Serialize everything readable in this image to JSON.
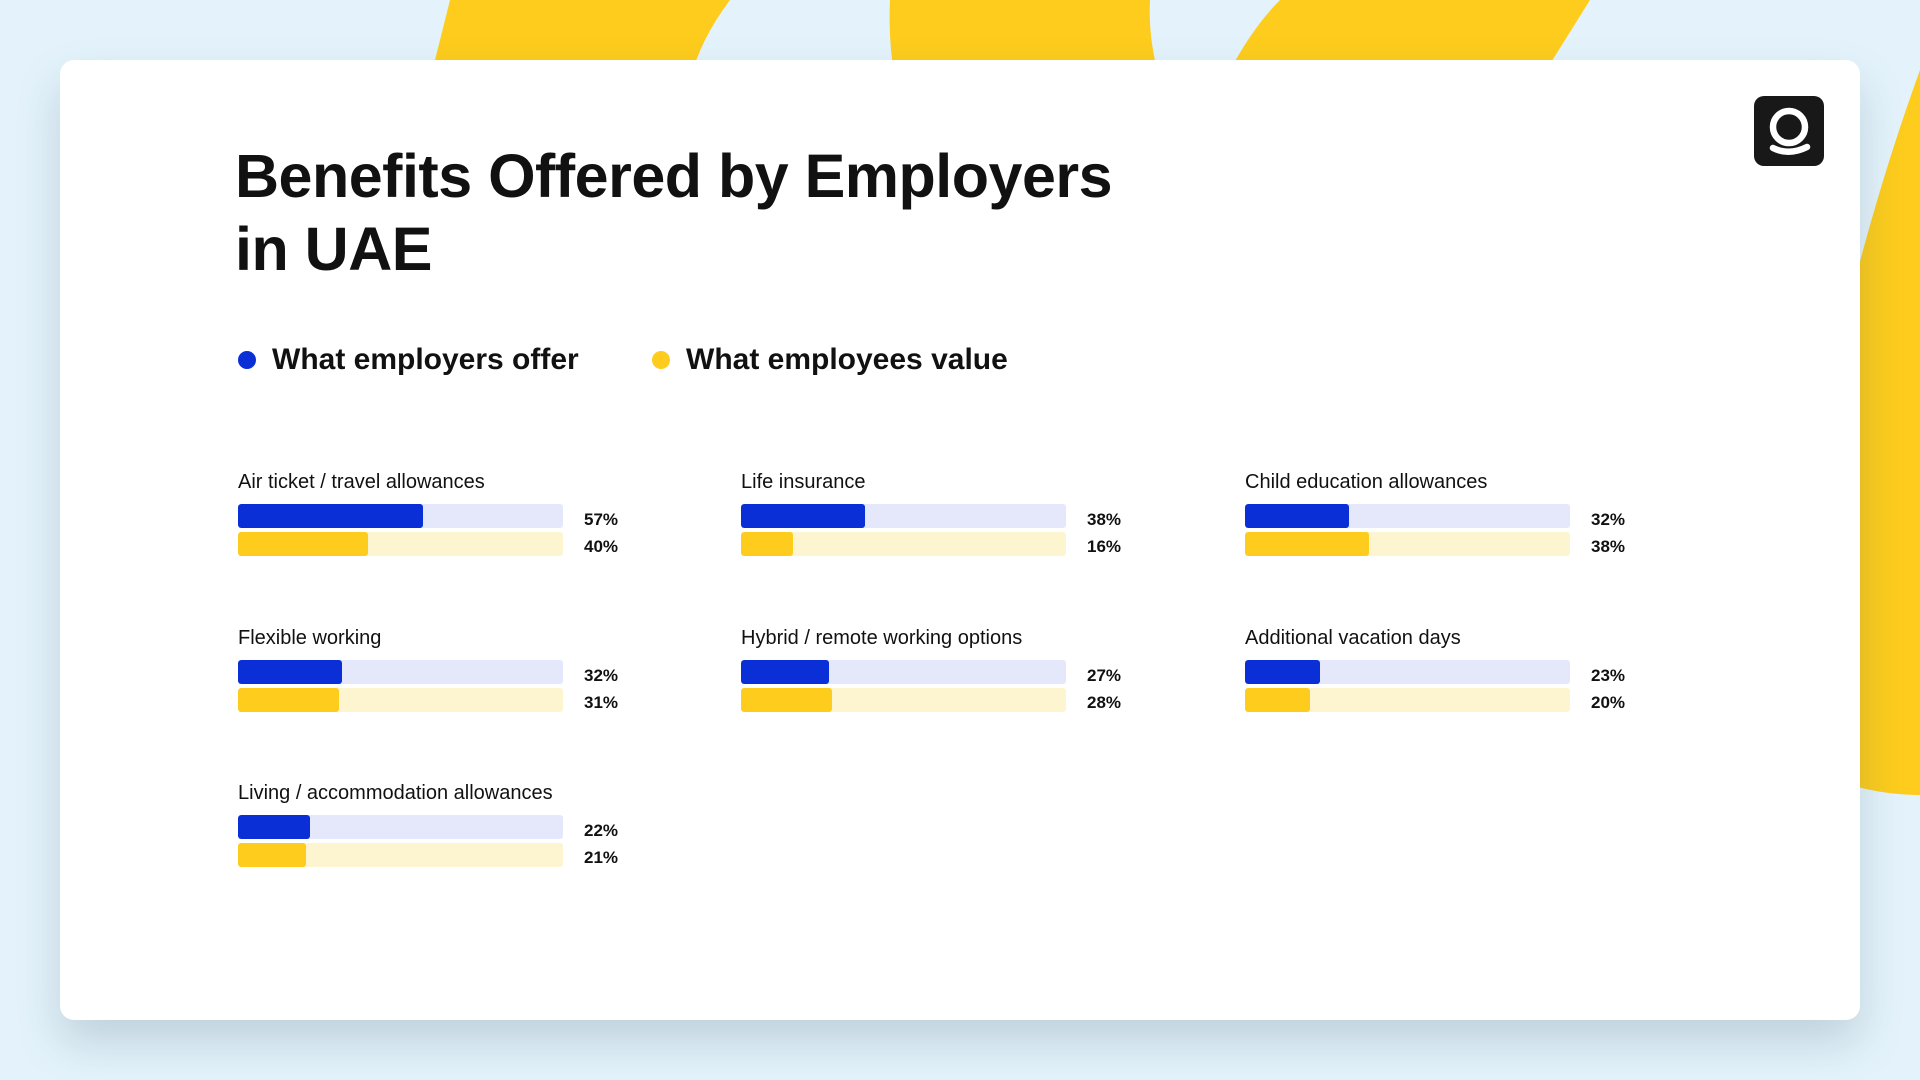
{
  "title": "Benefits Offered by Employers in UAE",
  "colors": {
    "offer": "#0a2fd6",
    "value": "#fdcc1c",
    "offer_track": "#e4e8fa",
    "value_track": "#fdf4d0",
    "background": "#e4f3fb"
  },
  "logo": {
    "icon": "q-logo-icon"
  },
  "legend": [
    {
      "label": "What employers offer",
      "color": "#0a2fd6"
    },
    {
      "label": "What employees value",
      "color": "#fdcc1c"
    }
  ],
  "chart_data": {
    "type": "bar",
    "orientation": "horizontal",
    "title": "Benefits Offered by Employers in UAE",
    "unit": "%",
    "xlim": [
      0,
      100
    ],
    "categories": [
      "Air ticket / travel allowances",
      "Life insurance",
      "Child education allowances",
      "Flexible working",
      "Hybrid / remote working options",
      "Additional vacation days",
      "Living / accommodation allowances"
    ],
    "series": [
      {
        "name": "What employers offer",
        "values": [
          57,
          38,
          32,
          32,
          27,
          23,
          22
        ]
      },
      {
        "name": "What employees value",
        "values": [
          40,
          16,
          38,
          31,
          28,
          20,
          21
        ]
      }
    ],
    "value_labels": {
      "offer": [
        "57%",
        "38%",
        "32%",
        "32%",
        "27%",
        "23%",
        "22%"
      ],
      "value": [
        "40%",
        "16%",
        "38%",
        "31%",
        "28%",
        "20%",
        "21%"
      ]
    },
    "legend_position": "top-left"
  }
}
